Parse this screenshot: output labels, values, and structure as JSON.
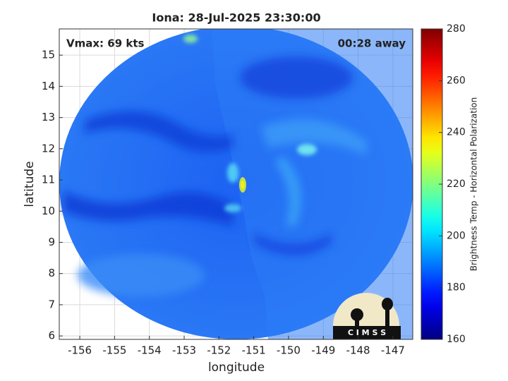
{
  "chart_data": {
    "type": "image",
    "title": "Iona: 28-Jul-2025 23:30:00",
    "x_label": "longitude",
    "y_label": "latitude",
    "annotations": [
      "Vmax: 69 kts",
      "00:28 away"
    ],
    "xlim": [
      -156.59,
      -146.43
    ],
    "xticks": [
      -156,
      -155,
      -154,
      -153,
      -152,
      -151,
      -150,
      -149,
      -148,
      -147
    ],
    "ylim": [
      5.89,
      15.84
    ],
    "yticks": [
      6,
      7,
      8,
      9,
      10,
      11,
      12,
      13,
      14,
      15
    ],
    "grid": true,
    "colorbar": {
      "label": "Brightness Temp - Horizontal Polarization",
      "lim": [
        160,
        280
      ],
      "ticks": [
        160,
        180,
        200,
        220,
        240,
        260,
        280
      ],
      "colormap": "jet"
    }
  },
  "logo": {
    "text": "C I M S S"
  }
}
